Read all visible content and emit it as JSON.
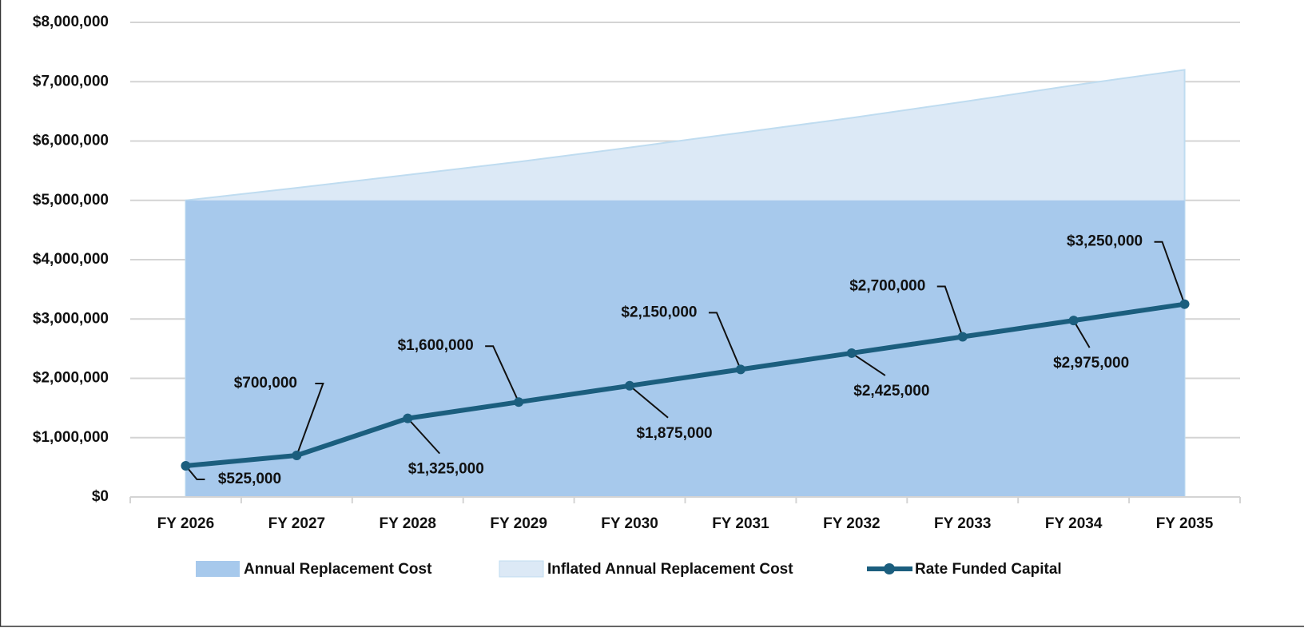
{
  "chart_data": {
    "type": "area-line",
    "categories": [
      "FY 2026",
      "FY 2027",
      "FY 2028",
      "FY 2029",
      "FY 2030",
      "FY 2031",
      "FY 2032",
      "FY 2033",
      "FY 2034",
      "FY 2035"
    ],
    "series": [
      {
        "name": "Annual Replacement Cost",
        "type": "area",
        "color": "#a7c9ec",
        "values": [
          5000000,
          5000000,
          5000000,
          5000000,
          5000000,
          5000000,
          5000000,
          5000000,
          5000000,
          5000000
        ]
      },
      {
        "name": "Inflated Annual Replacement Cost",
        "type": "area",
        "color": "#dce9f6",
        "values": [
          5000000,
          5210000,
          5430000,
          5650000,
          5890000,
          6140000,
          6390000,
          6660000,
          6940000,
          7200000
        ]
      },
      {
        "name": "Rate Funded Capital",
        "type": "line",
        "color": "#1b5e7e",
        "values": [
          525000,
          700000,
          1325000,
          1600000,
          1875000,
          2150000,
          2425000,
          2700000,
          2975000,
          3250000
        ],
        "value_labels": [
          "$525,000",
          "$700,000",
          "$1,325,000",
          "$1,600,000",
          "$1,875,000",
          "$2,150,000",
          "$2,425,000",
          "$2,700,000",
          "$2,975,000",
          "$3,250,000"
        ]
      }
    ],
    "ylim": [
      0,
      8000000
    ],
    "yticks": [
      {
        "value": 0,
        "label": "$0"
      },
      {
        "value": 1000000,
        "label": "$1,000,000"
      },
      {
        "value": 2000000,
        "label": "$2,000,000"
      },
      {
        "value": 3000000,
        "label": "$3,000,000"
      },
      {
        "value": 4000000,
        "label": "$4,000,000"
      },
      {
        "value": 5000000,
        "label": "$5,000,000"
      },
      {
        "value": 6000000,
        "label": "$6,000,000"
      },
      {
        "value": 7000000,
        "label": "$7,000,000"
      },
      {
        "value": 8000000,
        "label": "$8,000,000"
      }
    ],
    "grid": true,
    "legend": "bottom"
  }
}
